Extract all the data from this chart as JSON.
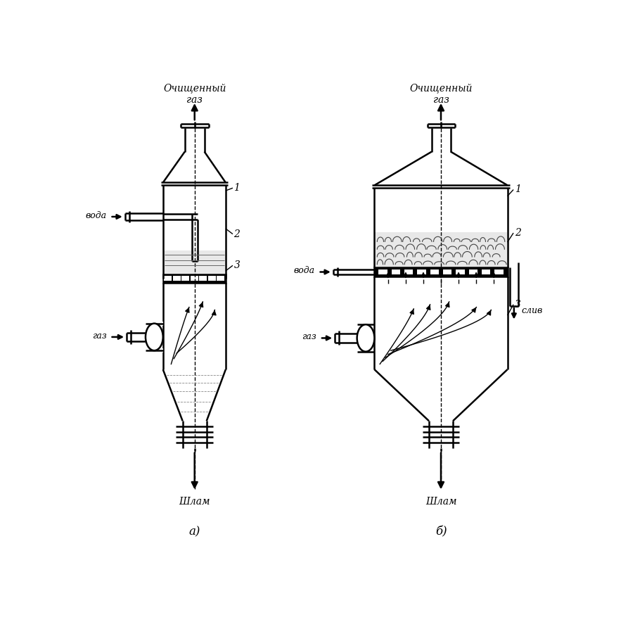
{
  "title_a": "а)",
  "title_b": "б)",
  "label_clean_gas": "Очищенный\nгаз",
  "label_water_a": "вода",
  "label_water_b": "вода",
  "label_gas_a": "газ",
  "label_gas_b": "газ",
  "label_shlam": "Шлам",
  "label_sliv": "слив",
  "label_1": "1",
  "label_2": "2",
  "label_3": "3",
  "line_color": "#000000",
  "bg_color": "#ffffff",
  "lw": 1.8,
  "lw_thin": 1.0
}
